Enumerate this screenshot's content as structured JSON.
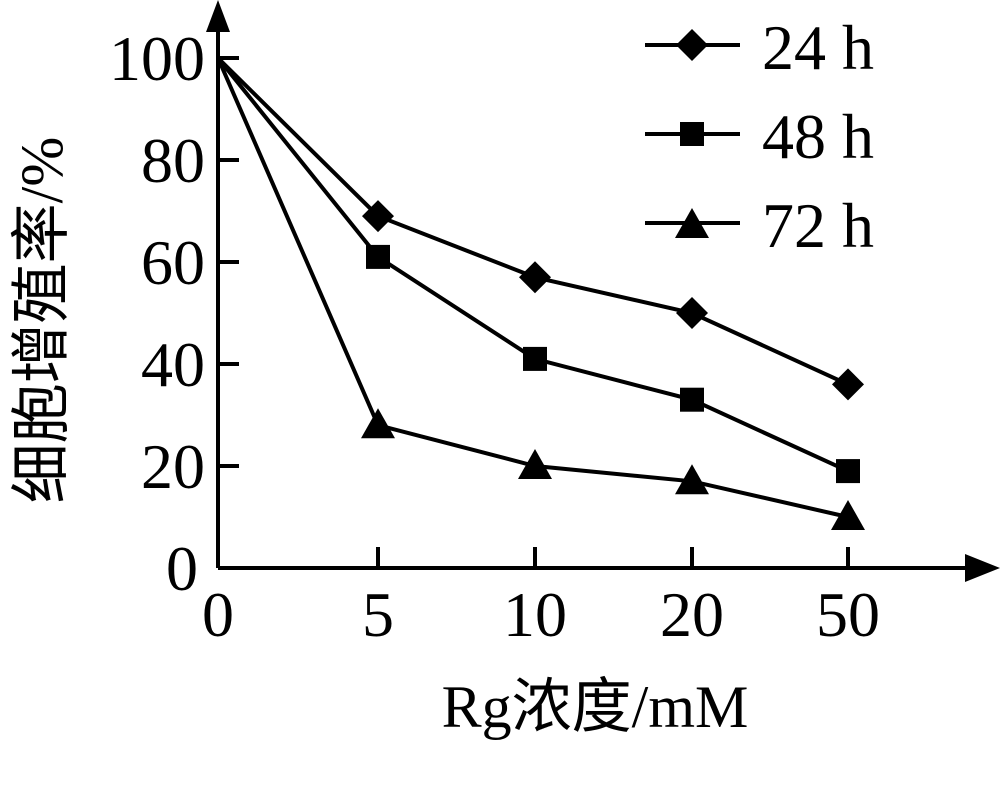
{
  "chart_data": {
    "type": "line",
    "title": "",
    "xlabel": "Rg浓度/mM",
    "ylabel": "细胞增殖率/%",
    "categories": [
      "0",
      "5",
      "10",
      "20",
      "50"
    ],
    "x": [
      0,
      5,
      10,
      20,
      50
    ],
    "ylim": [
      0,
      100
    ],
    "yticks": [
      0,
      20,
      40,
      60,
      80,
      100
    ],
    "grid": false,
    "legend_position": "top-right",
    "origin_labels": {
      "y": "0",
      "x": "0"
    },
    "series": [
      {
        "name": "24 h",
        "marker": "diamond",
        "values": [
          100,
          69,
          57,
          50,
          36
        ]
      },
      {
        "name": "48 h",
        "marker": "square",
        "values": [
          100,
          61,
          41,
          33,
          19
        ]
      },
      {
        "name": "72 h",
        "marker": "triangle",
        "values": [
          100,
          28,
          20,
          17,
          10
        ]
      }
    ],
    "colors": {
      "line": "#000000",
      "background": "#ffffff"
    }
  },
  "labels": {
    "xlabel": "Rg浓度/mM",
    "ylabel": "细胞增殖率/%",
    "legend": [
      "24 h",
      "48 h",
      "72 h"
    ]
  }
}
